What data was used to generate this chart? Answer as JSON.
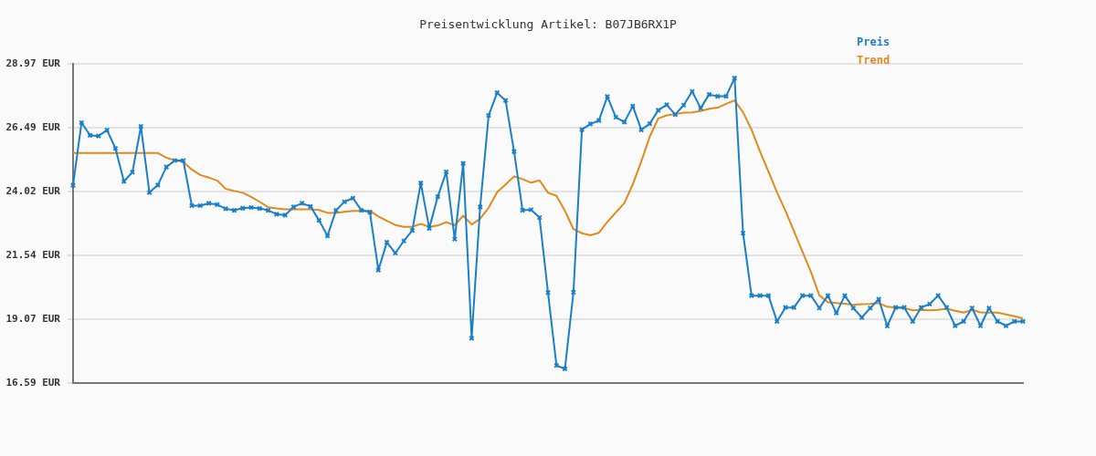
{
  "chart_data": {
    "type": "line",
    "title": "Preisentwicklung Artikel: B07JB6RX1P",
    "categories": [
      null,
      null,
      null,
      null,
      null,
      null,
      null,
      null,
      null,
      null,
      null,
      null,
      null,
      null,
      null,
      null,
      null,
      null,
      null,
      null,
      null,
      null,
      null,
      null,
      null,
      null,
      null,
      null,
      null,
      null,
      null,
      null,
      null,
      null,
      null,
      null,
      null,
      null,
      null,
      null,
      null,
      null,
      null,
      null,
      null,
      null,
      null,
      null,
      null,
      null,
      null,
      null,
      null,
      null,
      null,
      null,
      null,
      null,
      null,
      null,
      null,
      null,
      null,
      null,
      null,
      null,
      null,
      null,
      null,
      null,
      null,
      null,
      null,
      null,
      null,
      null,
      null,
      null,
      null,
      null,
      null,
      null,
      null,
      null,
      null,
      null,
      null,
      null,
      null,
      null,
      null,
      null,
      null,
      null,
      null,
      null,
      null,
      null,
      null,
      null,
      null,
      null,
      null,
      null,
      null,
      null,
      null,
      null,
      null,
      null,
      null,
      null,
      null
    ],
    "series": [
      {
        "name": "Preis",
        "color": "#1a7fc9",
        "marker": "cross",
        "values": [
          24.26,
          26.69,
          26.2,
          26.17,
          26.4,
          25.69,
          24.41,
          24.77,
          26.54,
          23.98,
          24.27,
          24.97,
          25.22,
          25.22,
          23.47,
          23.47,
          23.56,
          23.51,
          23.35,
          23.29,
          23.37,
          23.4,
          23.36,
          23.29,
          23.14,
          23.1,
          23.42,
          23.56,
          23.44,
          22.9,
          22.3,
          23.29,
          23.62,
          23.76,
          23.29,
          23.22,
          20.97,
          22.05,
          21.63,
          22.1,
          22.51,
          24.35,
          22.59,
          23.82,
          24.78,
          22.17,
          25.11,
          18.33,
          23.42,
          26.97,
          27.85,
          27.55,
          25.57,
          23.29,
          23.31,
          23.01,
          20.1,
          17.27,
          17.14,
          20.11,
          26.42,
          26.64,
          26.77,
          27.7,
          26.9,
          26.71,
          27.33,
          26.41,
          26.65,
          27.17,
          27.38,
          27.0,
          27.37,
          27.9,
          27.25,
          27.78,
          27.71,
          27.71,
          28.42,
          22.4,
          19.98,
          19.98,
          19.98,
          18.98,
          19.52,
          19.52,
          19.98,
          19.98,
          19.5,
          19.98,
          19.31,
          19.98,
          19.5,
          19.13,
          19.5,
          19.84,
          18.8,
          19.52,
          19.52,
          18.98,
          19.52,
          19.65,
          19.98,
          19.52,
          18.81,
          18.98,
          19.5,
          18.81,
          19.5,
          18.98,
          18.81,
          18.98,
          18.98
        ]
      },
      {
        "name": "Trend",
        "color": "#e08a1e",
        "marker": "none",
        "values": [
          25.51,
          25.51,
          25.51,
          25.51,
          25.51,
          25.51,
          25.51,
          25.51,
          25.51,
          25.51,
          25.51,
          25.33,
          25.23,
          25.17,
          24.87,
          24.66,
          24.56,
          24.44,
          24.12,
          24.04,
          23.97,
          23.81,
          23.62,
          23.41,
          23.36,
          23.33,
          23.33,
          23.33,
          23.33,
          23.3,
          23.19,
          23.19,
          23.23,
          23.27,
          23.27,
          23.27,
          23.05,
          22.88,
          22.72,
          22.65,
          22.65,
          22.76,
          22.65,
          22.7,
          22.83,
          22.71,
          23.08,
          22.74,
          22.96,
          23.39,
          23.99,
          24.29,
          24.6,
          24.5,
          24.36,
          24.45,
          23.97,
          23.85,
          23.27,
          22.56,
          22.4,
          22.32,
          22.42,
          22.84,
          23.21,
          23.57,
          24.3,
          25.18,
          26.15,
          26.85,
          26.97,
          27.02,
          27.08,
          27.09,
          27.14,
          27.23,
          27.27,
          27.42,
          27.55,
          27.09,
          26.42,
          25.57,
          24.78,
          23.99,
          23.27,
          22.48,
          21.69,
          20.9,
          19.99,
          19.72,
          19.69,
          19.67,
          19.62,
          19.65,
          19.66,
          19.69,
          19.55,
          19.52,
          19.5,
          19.41,
          19.43,
          19.41,
          19.43,
          19.47,
          19.39,
          19.32,
          19.43,
          19.33,
          19.32,
          19.32,
          19.25,
          19.18,
          19.1
        ]
      }
    ],
    "ylim": [
      16.59,
      28.97
    ],
    "yticks": [
      {
        "value": 16.59,
        "label": "16.59 EUR"
      },
      {
        "value": 19.07,
        "label": "19.07 EUR"
      },
      {
        "value": 21.54,
        "label": "21.54 EUR"
      },
      {
        "value": 24.02,
        "label": "24.02 EUR"
      },
      {
        "value": 26.49,
        "label": "26.49 EUR"
      },
      {
        "value": 28.97,
        "label": "28.97 EUR"
      }
    ],
    "grid": "y",
    "legend": "top right",
    "tick_labels": "y"
  }
}
